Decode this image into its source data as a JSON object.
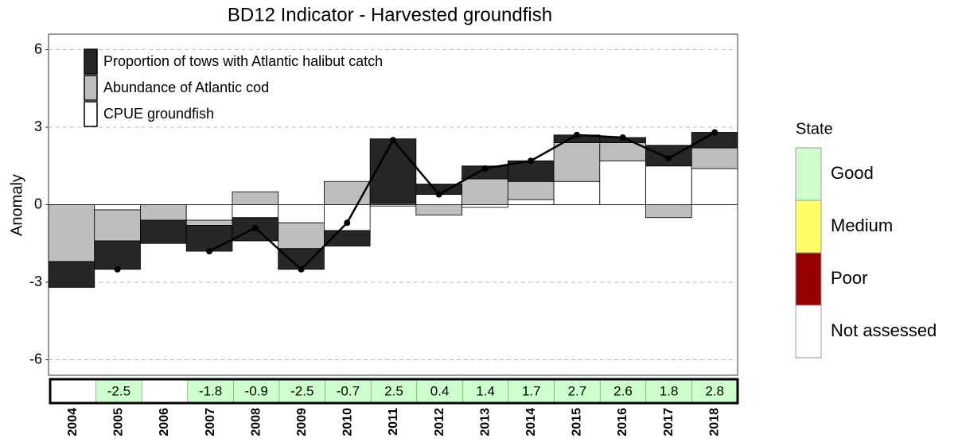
{
  "chart_data": {
    "type": "bar",
    "title": "BD12 Indicator - Harvested groundfish",
    "y_label": "Anomaly",
    "categories": [
      "2004",
      "2005",
      "2006",
      "2007",
      "2008",
      "2009",
      "2010",
      "2011",
      "2012",
      "2013",
      "2014",
      "2015",
      "2016",
      "2017",
      "2018"
    ],
    "series": [
      {
        "name": "Proportion of tows with Atlantic halibut catch",
        "color": "#262626",
        "values": [
          -1.0,
          -1.1,
          -0.9,
          -1.0,
          -0.9,
          -0.8,
          -0.6,
          2.5,
          0.4,
          0.5,
          0.8,
          0.3,
          0.2,
          0.8,
          0.6
        ]
      },
      {
        "name": "Abundance of Atlantic cod",
        "color": "#bebebe",
        "values": [
          -2.2,
          -1.2,
          -0.6,
          -0.2,
          0.5,
          -1.0,
          0.9,
          0.05,
          -0.4,
          1.0,
          0.7,
          1.5,
          0.7,
          -0.5,
          0.8
        ]
      },
      {
        "name": "CPUE groundfish",
        "color": "#ffffff",
        "values": [
          null,
          -0.2,
          null,
          -0.6,
          -0.5,
          -0.7,
          -1.0,
          -0.05,
          0.4,
          -0.1,
          0.2,
          0.9,
          1.7,
          1.5,
          1.4
        ]
      }
    ],
    "line": {
      "color": "#000000",
      "values": [
        null,
        -2.5,
        null,
        -1.8,
        -0.9,
        -2.5,
        -0.7,
        2.5,
        0.4,
        1.4,
        1.7,
        2.7,
        2.6,
        1.8,
        2.8
      ]
    },
    "ylim": [
      -6.6,
      6.6
    ],
    "yticks": [
      -6,
      -3,
      0,
      3,
      6
    ],
    "grid": true,
    "legend_position": "top-left",
    "state_legend": {
      "title": "State",
      "states": [
        {
          "name": "Good",
          "color": "#ccffcc"
        },
        {
          "name": "Medium",
          "color": "#ffff66"
        },
        {
          "name": "Poor",
          "color": "#990000"
        },
        {
          "name": "Not assessed",
          "color": "#ffffff"
        }
      ]
    },
    "states": [
      "Not assessed",
      "Good",
      "Not assessed",
      "Good",
      "Good",
      "Good",
      "Good",
      "Good",
      "Good",
      "Good",
      "Good",
      "Good",
      "Good",
      "Good",
      "Good"
    ]
  }
}
